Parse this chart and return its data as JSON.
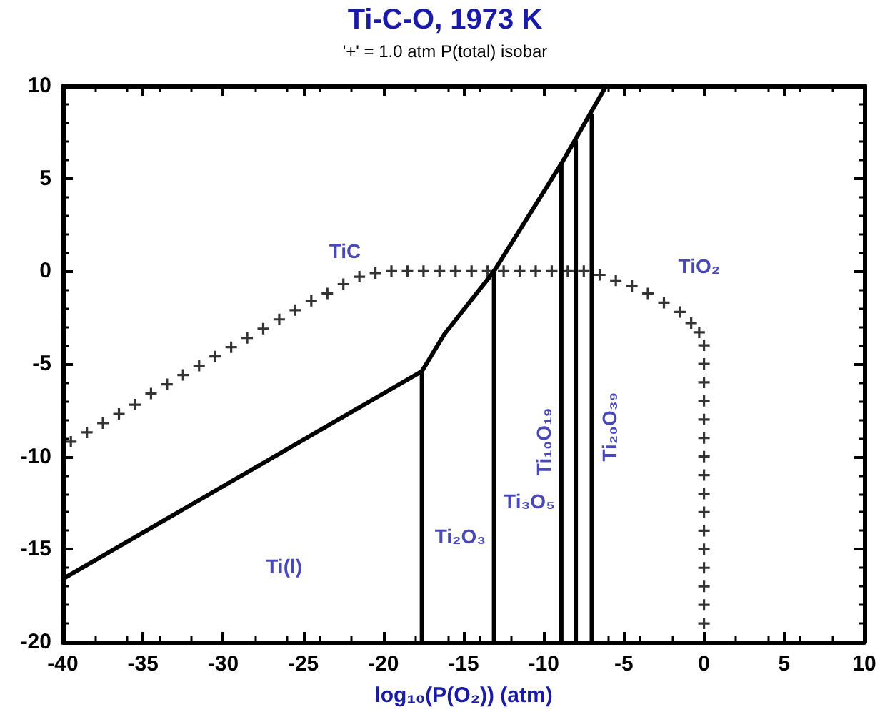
{
  "chart_data": {
    "type": "line",
    "title": "Ti-C-O, 1973 K",
    "subtitle": "'+' = 1.0 atm P(total) isobar",
    "xlabel": "log₁₀(P(O₂)) (atm)",
    "xlim": [
      -40,
      10
    ],
    "xticks": [
      -40,
      -35,
      -30,
      -25,
      -20,
      -15,
      -10,
      -5,
      0,
      5,
      10
    ],
    "ylim": [
      -20,
      10
    ],
    "yticks": [
      -20,
      -15,
      -10,
      -5,
      0,
      5,
      10
    ],
    "grid": false,
    "marker": "none",
    "line_style": "solid",
    "series": [
      {
        "color": "#000000",
        "x": [
          -40,
          -17.6
        ],
        "values": [
          -16.6,
          -5.4
        ]
      },
      {
        "color": "#000000",
        "x": [
          -17.6,
          -16.2,
          -13.1,
          -8.9,
          -6.1
        ],
        "values": [
          -5.4,
          -3.4,
          0,
          5.8,
          10
        ]
      },
      {
        "color": "#000000",
        "x": [
          -17.6,
          -17.6
        ],
        "values": [
          -20,
          -5.4
        ]
      },
      {
        "color": "#000000",
        "x": [
          -13.1,
          -13.1
        ],
        "values": [
          -20,
          0
        ]
      },
      {
        "color": "#000000",
        "x": [
          -8.9,
          -8.9
        ],
        "values": [
          -20,
          5.8
        ]
      },
      {
        "color": "#000000",
        "x": [
          -8.0,
          -8.0
        ],
        "values": [
          -20,
          7.0
        ]
      },
      {
        "color": "#000000",
        "x": [
          -7.0,
          -7.0
        ],
        "values": [
          -20,
          8.4
        ]
      },
      {
        "type": "scatter",
        "marker": "cross",
        "color": "#000000",
        "x": [
          -39.5,
          -38.5,
          -37.5,
          -36.5,
          -35.5,
          -34.5,
          -33.5,
          -32.5,
          -31.5,
          -30.5,
          -29.5,
          -28.5,
          -27.5,
          -26.5,
          -25.5,
          -24.5,
          -23.5,
          -22.5,
          -21.5,
          -20.5,
          -19.5,
          -18.5,
          -17.5,
          -16.5,
          -15.5,
          -14.5,
          -13.5,
          -12.5,
          -11.5,
          -10.5,
          -9.5,
          -8.5,
          -7.5,
          -6.5,
          -5.5,
          -4.5,
          -3.5,
          -2.5,
          -1.5,
          -0.8,
          -0.3,
          0,
          0,
          0,
          0,
          0,
          0,
          0,
          0,
          0,
          0,
          0,
          0,
          0,
          0,
          0,
          0
        ],
        "values": [
          -9.2,
          -8.7,
          -8.2,
          -7.7,
          -7.2,
          -6.6,
          -6.1,
          -5.6,
          -5.1,
          -4.6,
          -4.1,
          -3.6,
          -3.1,
          -2.6,
          -2.1,
          -1.6,
          -1.2,
          -0.7,
          -0.3,
          -0.1,
          0,
          0,
          0,
          0,
          0,
          0,
          0,
          0,
          0,
          0,
          0,
          0,
          0,
          -0.2,
          -0.5,
          -0.8,
          -1.2,
          -1.7,
          -2.2,
          -2.8,
          -3.3,
          -4,
          -5,
          -6,
          -7,
          -8,
          -9,
          -10,
          -11,
          -12,
          -13,
          -14,
          -15,
          -16,
          -17,
          -18,
          -19
        ]
      }
    ],
    "annotations": [
      "TiC",
      "TiO₂",
      "Ti(l)",
      "Ti₂O₃",
      "Ti₃O₅",
      "Ti₁₀O₁₉",
      "Ti₂₀O₃₉"
    ]
  }
}
